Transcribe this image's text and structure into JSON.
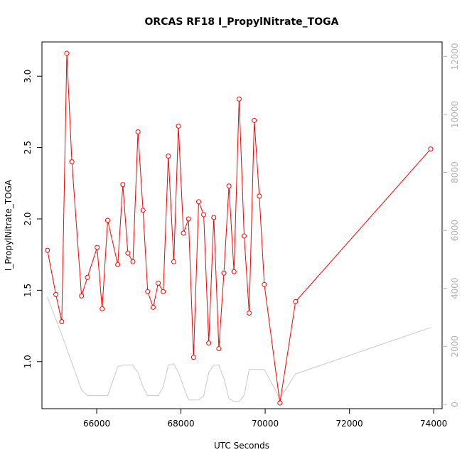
{
  "chart_data": {
    "type": "line",
    "title": "ORCAS RF18 I_PropylNitrate_TOGA",
    "xlabel": "UTC Seconds",
    "ylabel": "I_PropylNitrate_TOGA",
    "xlim": [
      64700,
      74200
    ],
    "ylim": [
      0.67,
      3.24
    ],
    "y2lim": [
      -150,
      12500
    ],
    "x_ticks": [
      66000,
      68000,
      70000,
      72000,
      74000
    ],
    "x_tick_labels": [
      "66000",
      "68000",
      "70000",
      "72000",
      "74000"
    ],
    "y_ticks": [
      1.0,
      1.5,
      2.0,
      2.5,
      3.0
    ],
    "y_tick_labels": [
      "1.0",
      "1.5",
      "2.0",
      "2.5",
      "3.0"
    ],
    "y2_ticks": [
      0,
      2000,
      4000,
      6000,
      8000,
      10000,
      12000
    ],
    "y2_tick_labels": [
      "0",
      "2000",
      "4000",
      "6000",
      "8000",
      "10000",
      "12000"
    ],
    "grid": false,
    "series": [
      {
        "color": "#ff0000",
        "axis": "left",
        "marker": "circle",
        "x": [
          64830,
          65030,
          65170,
          65290,
          65410,
          65640,
          65780,
          66010,
          66130,
          66260,
          66500,
          66620,
          66740,
          66860,
          66980,
          67100,
          67210,
          67340,
          67460,
          67580,
          67700,
          67830,
          67940,
          68060,
          68180,
          68300,
          68420,
          68540,
          68660,
          68780,
          68900,
          69020,
          69140,
          69260,
          69380,
          69500,
          69620,
          69740,
          69860,
          69980,
          70350,
          70720,
          73930
        ],
        "y": [
          1.78,
          1.47,
          1.28,
          3.16,
          2.4,
          1.46,
          1.59,
          1.8,
          1.37,
          1.99,
          1.68,
          2.24,
          1.76,
          1.7,
          2.61,
          2.06,
          1.49,
          1.38,
          1.55,
          1.49,
          2.44,
          1.7,
          2.65,
          1.9,
          2.0,
          1.03,
          2.12,
          2.03,
          1.13,
          2.01,
          1.09,
          1.62,
          2.23,
          1.63,
          2.84,
          1.88,
          1.34,
          2.69,
          2.16,
          1.54,
          0.71,
          1.42,
          2.49
        ]
      },
      {
        "color": "#c8c8c8",
        "axis": "right",
        "marker": "none",
        "x": [
          64830,
          65170,
          65640,
          65780,
          66260,
          66500,
          66620,
          66860,
          66980,
          67100,
          67210,
          67460,
          67580,
          67700,
          67830,
          67940,
          68180,
          68420,
          68540,
          68660,
          68780,
          68900,
          69020,
          69140,
          69260,
          69380,
          69500,
          69620,
          69740,
          69860,
          69980,
          70350,
          70720,
          73930
        ],
        "y": [
          3700,
          2400,
          500,
          300,
          300,
          1300,
          1350,
          1350,
          1100,
          600,
          300,
          300,
          600,
          1350,
          1400,
          1100,
          150,
          150,
          300,
          1100,
          1350,
          1350,
          900,
          200,
          100,
          100,
          300,
          1200,
          1200,
          1200,
          1200,
          200,
          1050,
          2650
        ]
      }
    ]
  }
}
